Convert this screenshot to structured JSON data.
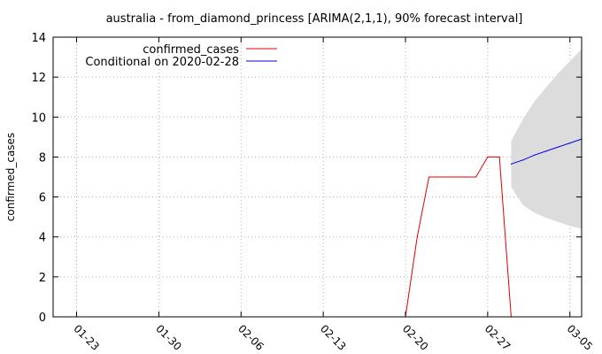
{
  "chart_data": {
    "type": "line",
    "title": "australia - from_diamond_princess [ARIMA(2,1,1), 90% forecast interval]",
    "xlabel": "",
    "ylabel": "confirmed_cases",
    "x_ticks": [
      "01-23",
      "01-30",
      "02-06",
      "02-13",
      "02-20",
      "02-27",
      "03-05"
    ],
    "x_tick_dates": [
      "2020-01-23",
      "2020-01-30",
      "2020-02-06",
      "2020-02-13",
      "2020-02-20",
      "2020-02-27",
      "2020-03-05"
    ],
    "xlim": [
      "2020-01-21",
      "2020-03-06"
    ],
    "ylim": [
      0,
      14
    ],
    "y_ticks": [
      0,
      2,
      4,
      6,
      8,
      10,
      12,
      14
    ],
    "grid": true,
    "legend_position": "top-left",
    "series": [
      {
        "name": "confirmed_cases",
        "color": "#e00000",
        "points": [
          {
            "x": "2020-01-21",
            "y": 0
          },
          {
            "x": "2020-02-20",
            "y": 0
          },
          {
            "x": "2020-02-21",
            "y": 4
          },
          {
            "x": "2020-02-22",
            "y": 7
          },
          {
            "x": "2020-02-23",
            "y": 7
          },
          {
            "x": "2020-02-24",
            "y": 7
          },
          {
            "x": "2020-02-25",
            "y": 7
          },
          {
            "x": "2020-02-26",
            "y": 7
          },
          {
            "x": "2020-02-27",
            "y": 8
          },
          {
            "x": "2020-02-28",
            "y": 8
          },
          {
            "x": "2020-02-29",
            "y": 0
          }
        ]
      },
      {
        "name": "Conditional on 2020-02-28",
        "color": "#0000e0",
        "points": [
          {
            "x": "2020-02-29",
            "y": 7.65
          },
          {
            "x": "2020-03-01",
            "y": 7.85
          },
          {
            "x": "2020-03-02",
            "y": 8.1
          },
          {
            "x": "2020-03-03",
            "y": 8.3
          },
          {
            "x": "2020-03-04",
            "y": 8.5
          },
          {
            "x": "2020-03-05",
            "y": 8.7
          },
          {
            "x": "2020-03-06",
            "y": 8.9
          }
        ]
      }
    ],
    "forecast_interval": {
      "color": "#dcdcdc",
      "points": [
        {
          "x": "2020-02-29",
          "lo": 6.5,
          "hi": 8.8
        },
        {
          "x": "2020-03-01",
          "lo": 5.6,
          "hi": 9.9
        },
        {
          "x": "2020-03-02",
          "lo": 5.2,
          "hi": 10.8
        },
        {
          "x": "2020-03-03",
          "lo": 4.95,
          "hi": 11.5
        },
        {
          "x": "2020-03-04",
          "lo": 4.75,
          "hi": 12.2
        },
        {
          "x": "2020-03-05",
          "lo": 4.55,
          "hi": 12.8
        },
        {
          "x": "2020-03-06",
          "lo": 4.4,
          "hi": 13.4
        }
      ]
    }
  }
}
